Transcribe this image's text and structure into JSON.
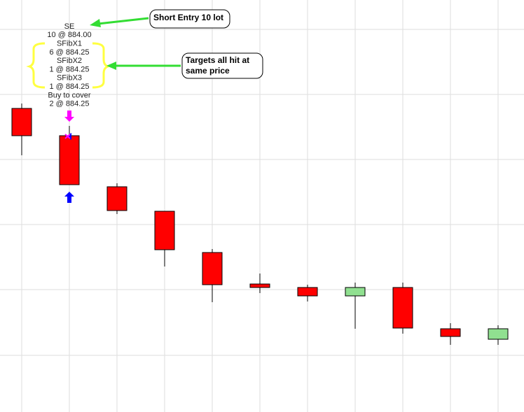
{
  "chart_data": {
    "type": "candlestick",
    "ylim": [
      0,
      589
    ],
    "open": [
      434,
      395,
      322,
      287,
      228,
      183,
      178,
      166,
      178,
      119,
      104
    ],
    "high": [
      441,
      409,
      327,
      287,
      233,
      198,
      182,
      185,
      185,
      127,
      124
    ],
    "low": [
      367,
      325,
      283,
      208,
      157,
      170,
      158,
      119,
      112,
      96,
      96
    ],
    "close": [
      395,
      325,
      288,
      232,
      182,
      178,
      166,
      178,
      120,
      108,
      119
    ],
    "up_color": "#90e090",
    "down_color": "#ff0000",
    "trade_labels": [
      "SE",
      "10 @ 884.00",
      "SFibX1",
      "6 @ 884.25",
      "SFibX2",
      "1 @ 884.25",
      "SFibX3",
      "1 @ 884.25",
      "Buy to cover",
      "2 @ 884.25"
    ],
    "callouts": [
      "Short Entry 10 lot",
      "Targets all hit at",
      "same price"
    ]
  }
}
